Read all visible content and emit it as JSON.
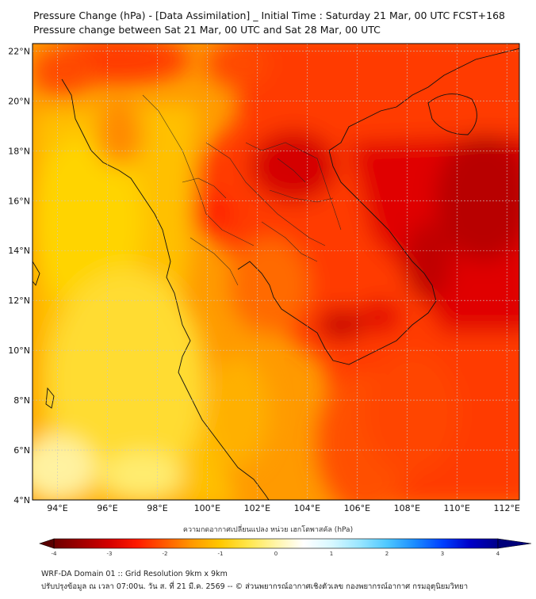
{
  "header": {
    "title_line1": "Pressure Change (hPa) - [Data Assimilation] _ Initial Time : Saturday 21 Mar, 00 UTC FCST+168",
    "title_line2": "Pressure change between Sat 21 Mar, 00 UTC and Sat 28 Mar, 00 UTC"
  },
  "map": {
    "lat_labels": [
      "22°N",
      "20°N",
      "18°N",
      "16°N",
      "14°N",
      "12°N",
      "10°N",
      "8°N",
      "6°N",
      "4°N"
    ],
    "lon_labels": [
      "94°E",
      "96°E",
      "98°E",
      "100°E",
      "102°E",
      "104°E",
      "106°E",
      "108°E",
      "110°E",
      "112°E"
    ],
    "lat_values": [
      22,
      20,
      18,
      16,
      14,
      12,
      10,
      8,
      6,
      4
    ],
    "lon_values": [
      94,
      96,
      98,
      100,
      102,
      104,
      106,
      108,
      110,
      112
    ],
    "lat_range": [
      4,
      22.3
    ],
    "lon_range": [
      93,
      112.5
    ]
  },
  "colorbar": {
    "label": "ความกดอากาศเปลี่ยนแปลง หน่วย เฮกโตพาสคัล (hPa)",
    "tick_labels": [
      "-4",
      "-3",
      "-2",
      "-1",
      "0",
      "1",
      "2",
      "3",
      "4"
    ],
    "tick_values": [
      -4,
      -3,
      -2,
      -1,
      0,
      1,
      2,
      3,
      4
    ],
    "colors": [
      "#6e0000",
      "#a00000",
      "#d40000",
      "#ff1a00",
      "#ff5a00",
      "#ff9a00",
      "#ffc800",
      "#ffe64a",
      "#fff5a8",
      "#ffffff",
      "#d8f8ff",
      "#9ae6ff",
      "#4fc8ff",
      "#1a8cff",
      "#0040ff",
      "#0000c8",
      "#00008a"
    ]
  },
  "footer": {
    "line1": "WRF-DA Domain 01 :: Grid Resolution 9km x 9km",
    "line2": "ปรับปรุงข้อมูล ณ เวลา 07:00น. วัน ส. ที่ 21 มี.ค. 2569 -- © ส่วนพยากรณ์อากาศเชิงตัวเลข กองพยากรณ์อากาศ กรมอุตุนิยมวิทยา"
  }
}
